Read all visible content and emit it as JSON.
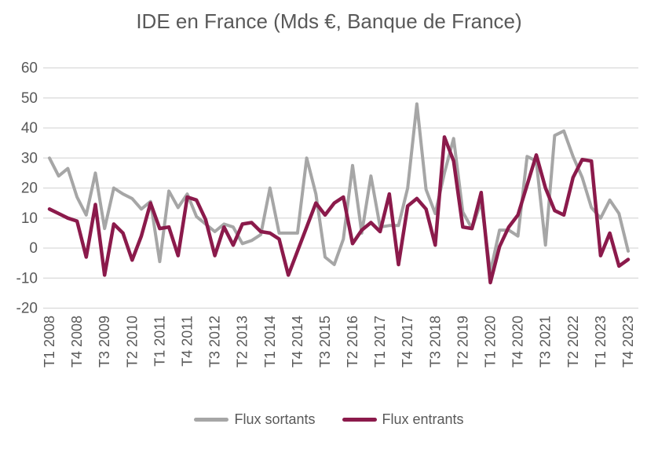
{
  "title": "IDE en France (Mds €, Banque de France)",
  "legend": {
    "sortants_label": "Flux sortants",
    "entrants_label": "Flux entrants"
  },
  "colors": {
    "sortants": "#A6A6A6",
    "entrants": "#8B1A4B",
    "grid": "#D9D9D9",
    "text": "#595959",
    "background": "#FFFFFF"
  },
  "chart_data": {
    "type": "line",
    "title": "IDE en France (Mds €, Banque de France)",
    "x_start": "T1 2008",
    "x_end": "T4 2023",
    "x_frequency": "quarterly",
    "x_tick_every": 3,
    "x_tick_labels": [
      "T1 2008",
      "T4 2008",
      "T3 2009",
      "T2 2010",
      "T1 2011",
      "T4 2011",
      "T3 2012",
      "T2 2013",
      "T1 2014",
      "T4 2014",
      "T3 2015",
      "T2 2016",
      "T1 2017",
      "T4 2017",
      "T3 2018",
      "T2 2019",
      "T1 2020",
      "T4 2020",
      "T3 2021",
      "T2 2022",
      "T1 2023",
      "T4 2023"
    ],
    "ylim": [
      -20,
      60
    ],
    "y_ticks": [
      60,
      50,
      40,
      30,
      20,
      10,
      0,
      -10,
      -20
    ],
    "grid": "horizontal",
    "legend_position": "bottom",
    "series": [
      {
        "name": "Flux sortants",
        "color": "#A6A6A6",
        "values": [
          30,
          24,
          26.5,
          17,
          11,
          25,
          6.5,
          20,
          18,
          16.5,
          13,
          15.5,
          -4.5,
          19,
          13.5,
          18,
          10.5,
          8,
          5.5,
          8,
          7,
          1.5,
          2.5,
          4.5,
          20,
          5,
          5,
          5,
          30,
          18,
          -3,
          -5.5,
          3,
          27.5,
          5,
          24,
          7,
          7.5,
          7.5,
          20,
          48,
          19.5,
          11.5,
          25,
          36.5,
          12,
          6.5,
          15.5,
          -8,
          6,
          6,
          4,
          30.5,
          29,
          1,
          37.5,
          39,
          30.5,
          23.5,
          13.5,
          10,
          16,
          11.5,
          -1
        ]
      },
      {
        "name": "Flux entrants",
        "color": "#8B1A4B",
        "values": [
          13,
          11.5,
          10,
          9,
          -3,
          14.5,
          -9,
          8,
          5,
          -4,
          4,
          15,
          6.5,
          7,
          -2.5,
          17,
          16,
          9.5,
          -2.5,
          7,
          1,
          8,
          8.5,
          5.5,
          5,
          3,
          -9,
          -1,
          7,
          15,
          11,
          15,
          17,
          1.5,
          6,
          8.5,
          5.5,
          18,
          -5.5,
          14,
          16.5,
          13,
          1,
          37,
          29,
          7,
          6.5,
          18.5,
          -11.5,
          0.5,
          7,
          11,
          21,
          31,
          20,
          12.5,
          11,
          23.5,
          29.5,
          29,
          -2.5,
          5,
          -6,
          -3.8
        ]
      }
    ]
  }
}
